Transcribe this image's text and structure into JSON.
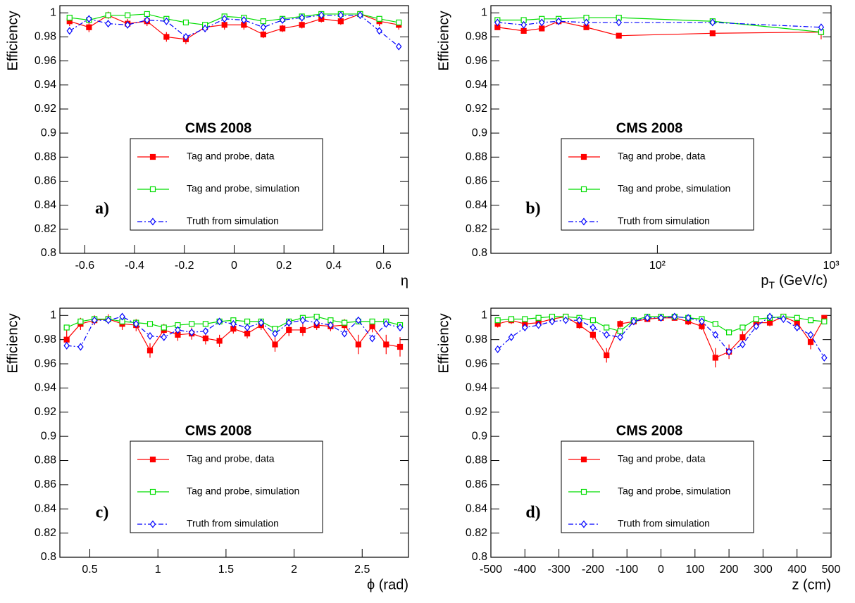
{
  "chart_data": [
    {
      "type": "line",
      "panel_label": "a)",
      "annotation": "CMS 2008",
      "y_label": "Efficiency",
      "x_label": "η",
      "xlim": [
        -0.7,
        0.7
      ],
      "xticks": [
        -0.6,
        -0.4,
        -0.2,
        0,
        0.2,
        0.4,
        0.6
      ],
      "ylim": [
        0.8,
        1.006
      ],
      "yticks": [
        0.8,
        0.82,
        0.84,
        0.86,
        0.88,
        0.9,
        0.92,
        0.94,
        0.96,
        0.98,
        1
      ],
      "series": [
        {
          "name": "Tag and probe, data",
          "color": "#ff0000",
          "marker": "filled-square",
          "line_style": "solid",
          "x": [
            -0.661,
            -0.583,
            -0.506,
            -0.428,
            -0.35,
            -0.272,
            -0.194,
            -0.117,
            -0.039,
            0.039,
            0.117,
            0.194,
            0.272,
            0.35,
            0.428,
            0.506,
            0.583,
            0.661
          ],
          "values": [
            0.993,
            0.988,
            0.998,
            0.991,
            0.993,
            0.98,
            0.978,
            0.988,
            0.99,
            0.99,
            0.982,
            0.987,
            0.99,
            0.995,
            0.993,
            0.999,
            0.993,
            0.99
          ],
          "errors": [
            0.004,
            0.004,
            0.003,
            0.004,
            0.004,
            0.004,
            0.004,
            0.004,
            0.004,
            0.004,
            0.003,
            0.003,
            0.003,
            0.003,
            0.003,
            0.002,
            0.004,
            0.004
          ]
        },
        {
          "name": "Tag and probe, simulation",
          "color": "#00dd00",
          "marker": "open-square",
          "line_style": "solid",
          "x": [
            -0.661,
            -0.583,
            -0.506,
            -0.428,
            -0.35,
            -0.272,
            -0.194,
            -0.117,
            -0.039,
            0.039,
            0.117,
            0.194,
            0.272,
            0.35,
            0.428,
            0.506,
            0.583,
            0.661
          ],
          "values": [
            0.996,
            0.994,
            0.998,
            0.998,
            0.999,
            0.995,
            0.992,
            0.99,
            0.997,
            0.996,
            0.993,
            0.995,
            0.997,
            0.999,
            0.999,
            0.999,
            0.995,
            0.992
          ]
        },
        {
          "name": "Truth from simulation",
          "color": "#0000ff",
          "marker": "open-diamond",
          "line_style": "dash-dot",
          "x": [
            -0.661,
            -0.583,
            -0.506,
            -0.428,
            -0.35,
            -0.272,
            -0.194,
            -0.117,
            -0.039,
            0.039,
            0.117,
            0.194,
            0.272,
            0.35,
            0.428,
            0.506,
            0.583,
            0.661
          ],
          "values": [
            0.985,
            0.995,
            0.991,
            0.99,
            0.994,
            0.993,
            0.98,
            0.987,
            0.995,
            0.994,
            0.988,
            0.994,
            0.996,
            0.998,
            0.998,
            0.998,
            0.985,
            0.972
          ]
        }
      ]
    },
    {
      "type": "line",
      "panel_label": "b)",
      "annotation": "CMS 2008",
      "y_label": "Efficiency",
      "x_label": "p",
      "x_label_subscript": "T",
      "x_label_suffix": "(GeV/c)",
      "log_x": true,
      "xlim": [
        11,
        1000
      ],
      "xticks": [
        {
          "value": 100,
          "label": "10²"
        },
        {
          "value": 1000,
          "label": "10³"
        }
      ],
      "ylim": [
        0.8,
        1.006
      ],
      "yticks": [
        0.8,
        0.82,
        0.84,
        0.86,
        0.88,
        0.9,
        0.92,
        0.94,
        0.96,
        0.98,
        1
      ],
      "series": [
        {
          "name": "Tag and probe, data",
          "color": "#ff0000",
          "marker": "filled-square",
          "line_style": "solid",
          "x": [
            12,
            17,
            21.6,
            27,
            39,
            60,
            208,
            877
          ],
          "values": [
            0.988,
            0.985,
            0.987,
            0.993,
            0.988,
            0.981,
            0.983,
            0.984
          ],
          "errors": [
            0.002,
            0.002,
            0.002,
            0.002,
            0.002,
            0.002,
            0.002,
            0.006
          ]
        },
        {
          "name": "Tag and probe, simulation",
          "color": "#00dd00",
          "marker": "open-square",
          "line_style": "solid",
          "x": [
            12,
            17,
            21.6,
            27,
            39,
            60,
            208,
            877
          ],
          "values": [
            0.994,
            0.994,
            0.995,
            0.995,
            0.996,
            0.996,
            0.993,
            0.984
          ]
        },
        {
          "name": "Truth from simulation",
          "color": "#0000ff",
          "marker": "open-diamond",
          "line_style": "dash-dot",
          "x": [
            12,
            17,
            21.6,
            27,
            39,
            60,
            208,
            877
          ],
          "values": [
            0.992,
            0.99,
            0.992,
            0.993,
            0.992,
            0.992,
            0.992,
            0.988
          ]
        }
      ]
    },
    {
      "type": "line",
      "panel_label": "c)",
      "annotation": "CMS 2008",
      "y_label": "Efficiency",
      "x_label": "ϕ (rad)",
      "xlim": [
        0.28,
        2.84
      ],
      "xticks": [
        0.5,
        1,
        1.5,
        2,
        2.5
      ],
      "ylim": [
        0.8,
        1.006
      ],
      "yticks": [
        0.8,
        0.82,
        0.84,
        0.86,
        0.88,
        0.9,
        0.92,
        0.94,
        0.96,
        0.98,
        1
      ],
      "series": [
        {
          "name": "Tag and probe, data",
          "color": "#ff0000",
          "marker": "filled-square",
          "line_style": "solid",
          "x": [
            0.33,
            0.432,
            0.534,
            0.636,
            0.738,
            0.84,
            0.942,
            1.044,
            1.146,
            1.248,
            1.35,
            1.452,
            1.554,
            1.656,
            1.758,
            1.86,
            1.962,
            2.064,
            2.166,
            2.268,
            2.37,
            2.472,
            2.574,
            2.676,
            2.778
          ],
          "values": [
            0.98,
            0.993,
            0.996,
            0.997,
            0.993,
            0.992,
            0.971,
            0.988,
            0.984,
            0.985,
            0.981,
            0.979,
            0.989,
            0.985,
            0.992,
            0.976,
            0.988,
            0.988,
            0.992,
            0.991,
            0.992,
            0.976,
            0.991,
            0.976,
            0.974
          ],
          "errors": [
            0.008,
            0.005,
            0.004,
            0.004,
            0.005,
            0.005,
            0.006,
            0.005,
            0.005,
            0.005,
            0.005,
            0.005,
            0.004,
            0.004,
            0.004,
            0.006,
            0.005,
            0.005,
            0.004,
            0.004,
            0.005,
            0.008,
            0.005,
            0.008,
            0.008
          ]
        },
        {
          "name": "Tag and probe, simulation",
          "color": "#00dd00",
          "marker": "open-square",
          "line_style": "solid",
          "x": [
            0.33,
            0.432,
            0.534,
            0.636,
            0.738,
            0.84,
            0.942,
            1.044,
            1.146,
            1.248,
            1.35,
            1.452,
            1.554,
            1.656,
            1.758,
            1.86,
            1.962,
            2.064,
            2.166,
            2.268,
            2.37,
            2.472,
            2.574,
            2.676,
            2.778
          ],
          "values": [
            0.99,
            0.995,
            0.997,
            0.997,
            0.995,
            0.994,
            0.993,
            0.99,
            0.992,
            0.993,
            0.993,
            0.995,
            0.996,
            0.995,
            0.995,
            0.989,
            0.995,
            0.998,
            0.999,
            0.996,
            0.994,
            0.995,
            0.995,
            0.995,
            0.992
          ]
        },
        {
          "name": "Truth from simulation",
          "color": "#0000ff",
          "marker": "open-diamond",
          "line_style": "dash-dot",
          "x": [
            0.33,
            0.432,
            0.534,
            0.636,
            0.738,
            0.84,
            0.942,
            1.044,
            1.146,
            1.248,
            1.35,
            1.452,
            1.554,
            1.656,
            1.758,
            1.86,
            1.962,
            2.064,
            2.166,
            2.268,
            2.37,
            2.472,
            2.574,
            2.676,
            2.778
          ],
          "values": [
            0.975,
            0.974,
            0.996,
            0.996,
            0.999,
            0.993,
            0.983,
            0.982,
            0.988,
            0.986,
            0.987,
            0.995,
            0.993,
            0.99,
            0.994,
            0.985,
            0.994,
            0.996,
            0.994,
            0.992,
            0.985,
            0.996,
            0.981,
            0.993,
            0.99
          ]
        }
      ]
    },
    {
      "type": "line",
      "panel_label": "d)",
      "annotation": "CMS 2008",
      "y_label": "Efficiency",
      "x_label": "z (cm)",
      "xlim": [
        -500,
        500
      ],
      "xticks": [
        -500,
        -400,
        -300,
        -200,
        -100,
        0,
        100,
        200,
        300,
        400,
        500
      ],
      "ylim": [
        0.8,
        1.006
      ],
      "yticks": [
        0.8,
        0.82,
        0.84,
        0.86,
        0.88,
        0.9,
        0.92,
        0.94,
        0.96,
        0.98,
        1
      ],
      "series": [
        {
          "name": "Tag and probe, data",
          "color": "#ff0000",
          "marker": "filled-square",
          "line_style": "solid",
          "x": [
            -480,
            -440,
            -400,
            -360,
            -320,
            -280,
            -240,
            -200,
            -160,
            -120,
            -80,
            -40,
            0,
            40,
            80,
            120,
            160,
            200,
            240,
            280,
            320,
            360,
            400,
            440,
            480
          ],
          "values": [
            0.993,
            0.996,
            0.993,
            0.994,
            0.997,
            0.999,
            0.992,
            0.984,
            0.967,
            0.993,
            0.995,
            0.997,
            0.998,
            0.998,
            0.995,
            0.991,
            0.965,
            0.97,
            0.982,
            0.994,
            0.994,
            0.999,
            0.994,
            0.978,
            0.998
          ],
          "errors": [
            0.003,
            0.003,
            0.003,
            0.003,
            0.002,
            0.002,
            0.003,
            0.004,
            0.006,
            0.003,
            0.003,
            0.002,
            0.002,
            0.002,
            0.003,
            0.003,
            0.008,
            0.006,
            0.005,
            0.003,
            0.003,
            0.002,
            0.003,
            0.006,
            0.002
          ]
        },
        {
          "name": "Tag and probe, simulation",
          "color": "#00dd00",
          "marker": "open-square",
          "line_style": "solid",
          "x": [
            -480,
            -440,
            -400,
            -360,
            -320,
            -280,
            -240,
            -200,
            -160,
            -120,
            -80,
            -40,
            0,
            40,
            80,
            120,
            160,
            200,
            240,
            280,
            320,
            360,
            400,
            440,
            480
          ],
          "values": [
            0.996,
            0.997,
            0.997,
            0.998,
            0.999,
            0.999,
            0.998,
            0.996,
            0.99,
            0.987,
            0.996,
            0.999,
            0.999,
            0.999,
            0.998,
            0.997,
            0.993,
            0.986,
            0.99,
            0.997,
            0.998,
            0.999,
            0.998,
            0.996,
            0.995
          ]
        },
        {
          "name": "Truth from simulation",
          "color": "#0000ff",
          "marker": "open-diamond",
          "line_style": "dash-dot",
          "x": [
            -480,
            -440,
            -400,
            -360,
            -320,
            -280,
            -240,
            -200,
            -160,
            -120,
            -80,
            -40,
            0,
            40,
            80,
            120,
            160,
            200,
            240,
            280,
            320,
            360,
            400,
            440,
            480
          ],
          "values": [
            0.972,
            0.982,
            0.99,
            0.992,
            0.995,
            0.996,
            0.996,
            0.99,
            0.984,
            0.982,
            0.995,
            0.998,
            0.998,
            0.999,
            0.998,
            0.995,
            0.984,
            0.97,
            0.976,
            0.991,
            0.999,
            0.997,
            0.99,
            0.984,
            0.965
          ]
        }
      ]
    }
  ]
}
